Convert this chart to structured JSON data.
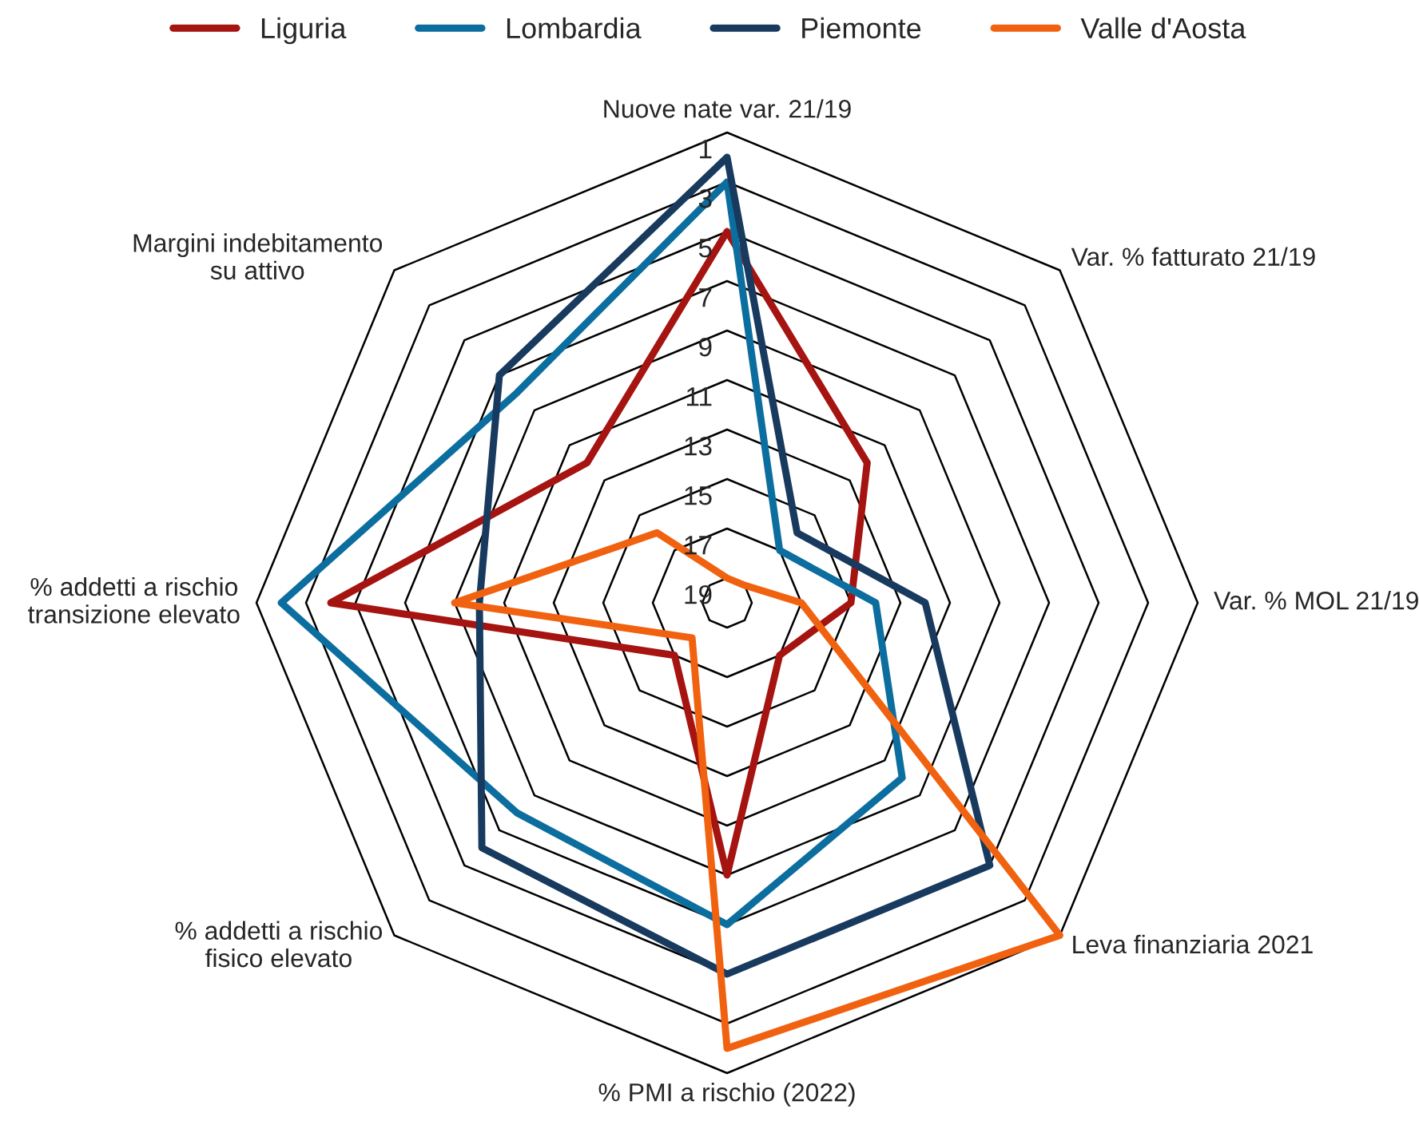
{
  "chart_data": {
    "type": "radar",
    "categories": [
      "Nuove nate var. 21/19",
      "Var. % fatturato 21/19",
      "Var. % MOL 21/19",
      "Leva finanziaria 2021",
      "% PMI a rischio (2022)",
      "% addetti a rischio\nfisico elevato",
      "% addetti a rischio\ntransizione elevato",
      "Margini indebitamento\nsu attivo"
    ],
    "series": [
      {
        "name": "Liguria",
        "color": "#a51410",
        "values": [
          5,
          12,
          15,
          17,
          9,
          17,
          4,
          12
        ]
      },
      {
        "name": "Lombardia",
        "color": "#0b6e9f",
        "values": [
          3,
          17,
          14,
          10,
          7,
          8,
          2,
          8
        ]
      },
      {
        "name": "Piemonte",
        "color": "#173a5e",
        "values": [
          2,
          16,
          12,
          5,
          5,
          6,
          10,
          7
        ]
      },
      {
        "name": "Valle d'Aosta",
        "color": "#f0620f",
        "values": [
          19,
          19,
          17,
          1,
          2,
          18,
          9,
          16
        ]
      }
    ],
    "ylim": [
      20,
      1
    ],
    "yticks": [
      1,
      3,
      5,
      7,
      9,
      11,
      13,
      15,
      17,
      19
    ],
    "grid": true,
    "legend": "top",
    "marker": "none",
    "line_style": "solid"
  }
}
